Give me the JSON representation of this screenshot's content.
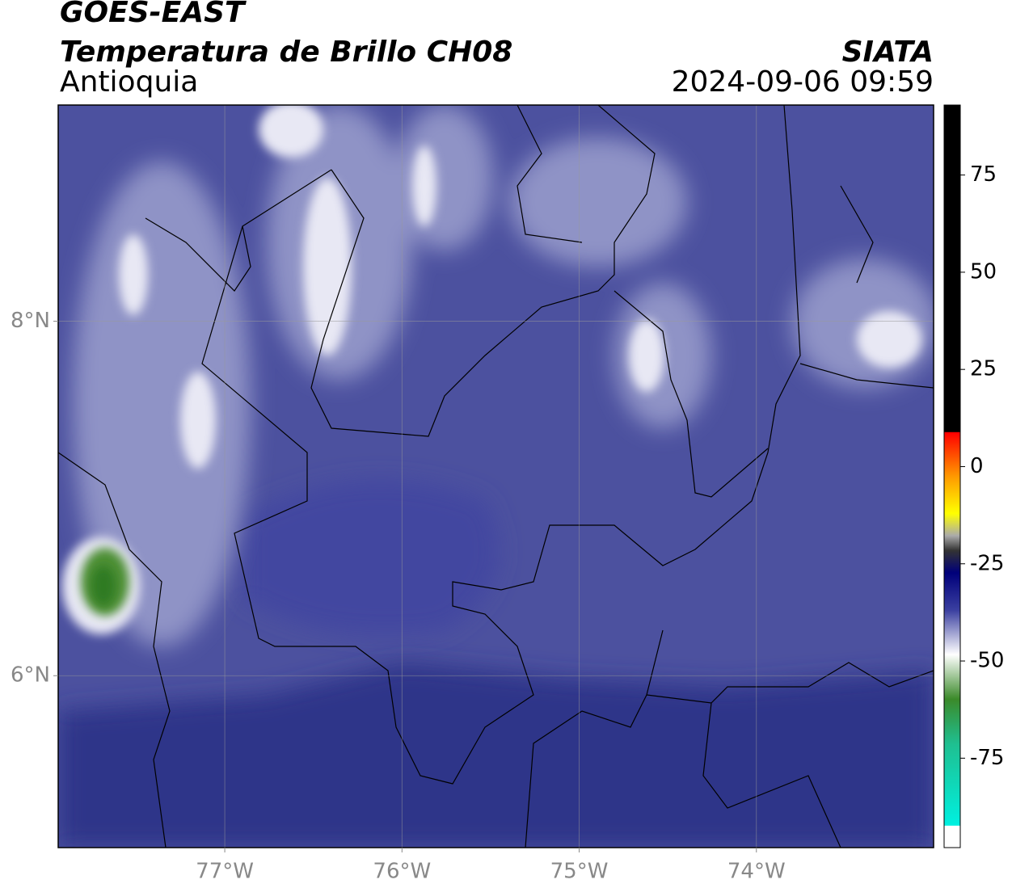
{
  "header": {
    "title": "GOES-EAST",
    "subtitle": "Temperatura de Brillo CH08",
    "region": "Antioquia",
    "source": "SIATA",
    "datetime": "2024-09-06 09:59"
  },
  "map": {
    "xlim": [
      -77.94,
      -73.0
    ],
    "ylim": [
      5.03,
      9.22
    ],
    "xticks": [
      {
        "value": -77,
        "label": "77°W"
      },
      {
        "value": -76,
        "label": "76°W"
      },
      {
        "value": -75,
        "label": "75°W"
      },
      {
        "value": -74,
        "label": "74°W"
      }
    ],
    "yticks": [
      {
        "value": 6,
        "label": "6°N"
      },
      {
        "value": 8,
        "label": "8°N"
      }
    ],
    "grid": true
  },
  "colorbar": {
    "lim": [
      -98,
      93
    ],
    "ticks": [
      -75,
      -50,
      -25,
      0,
      25,
      50,
      75
    ]
  }
}
